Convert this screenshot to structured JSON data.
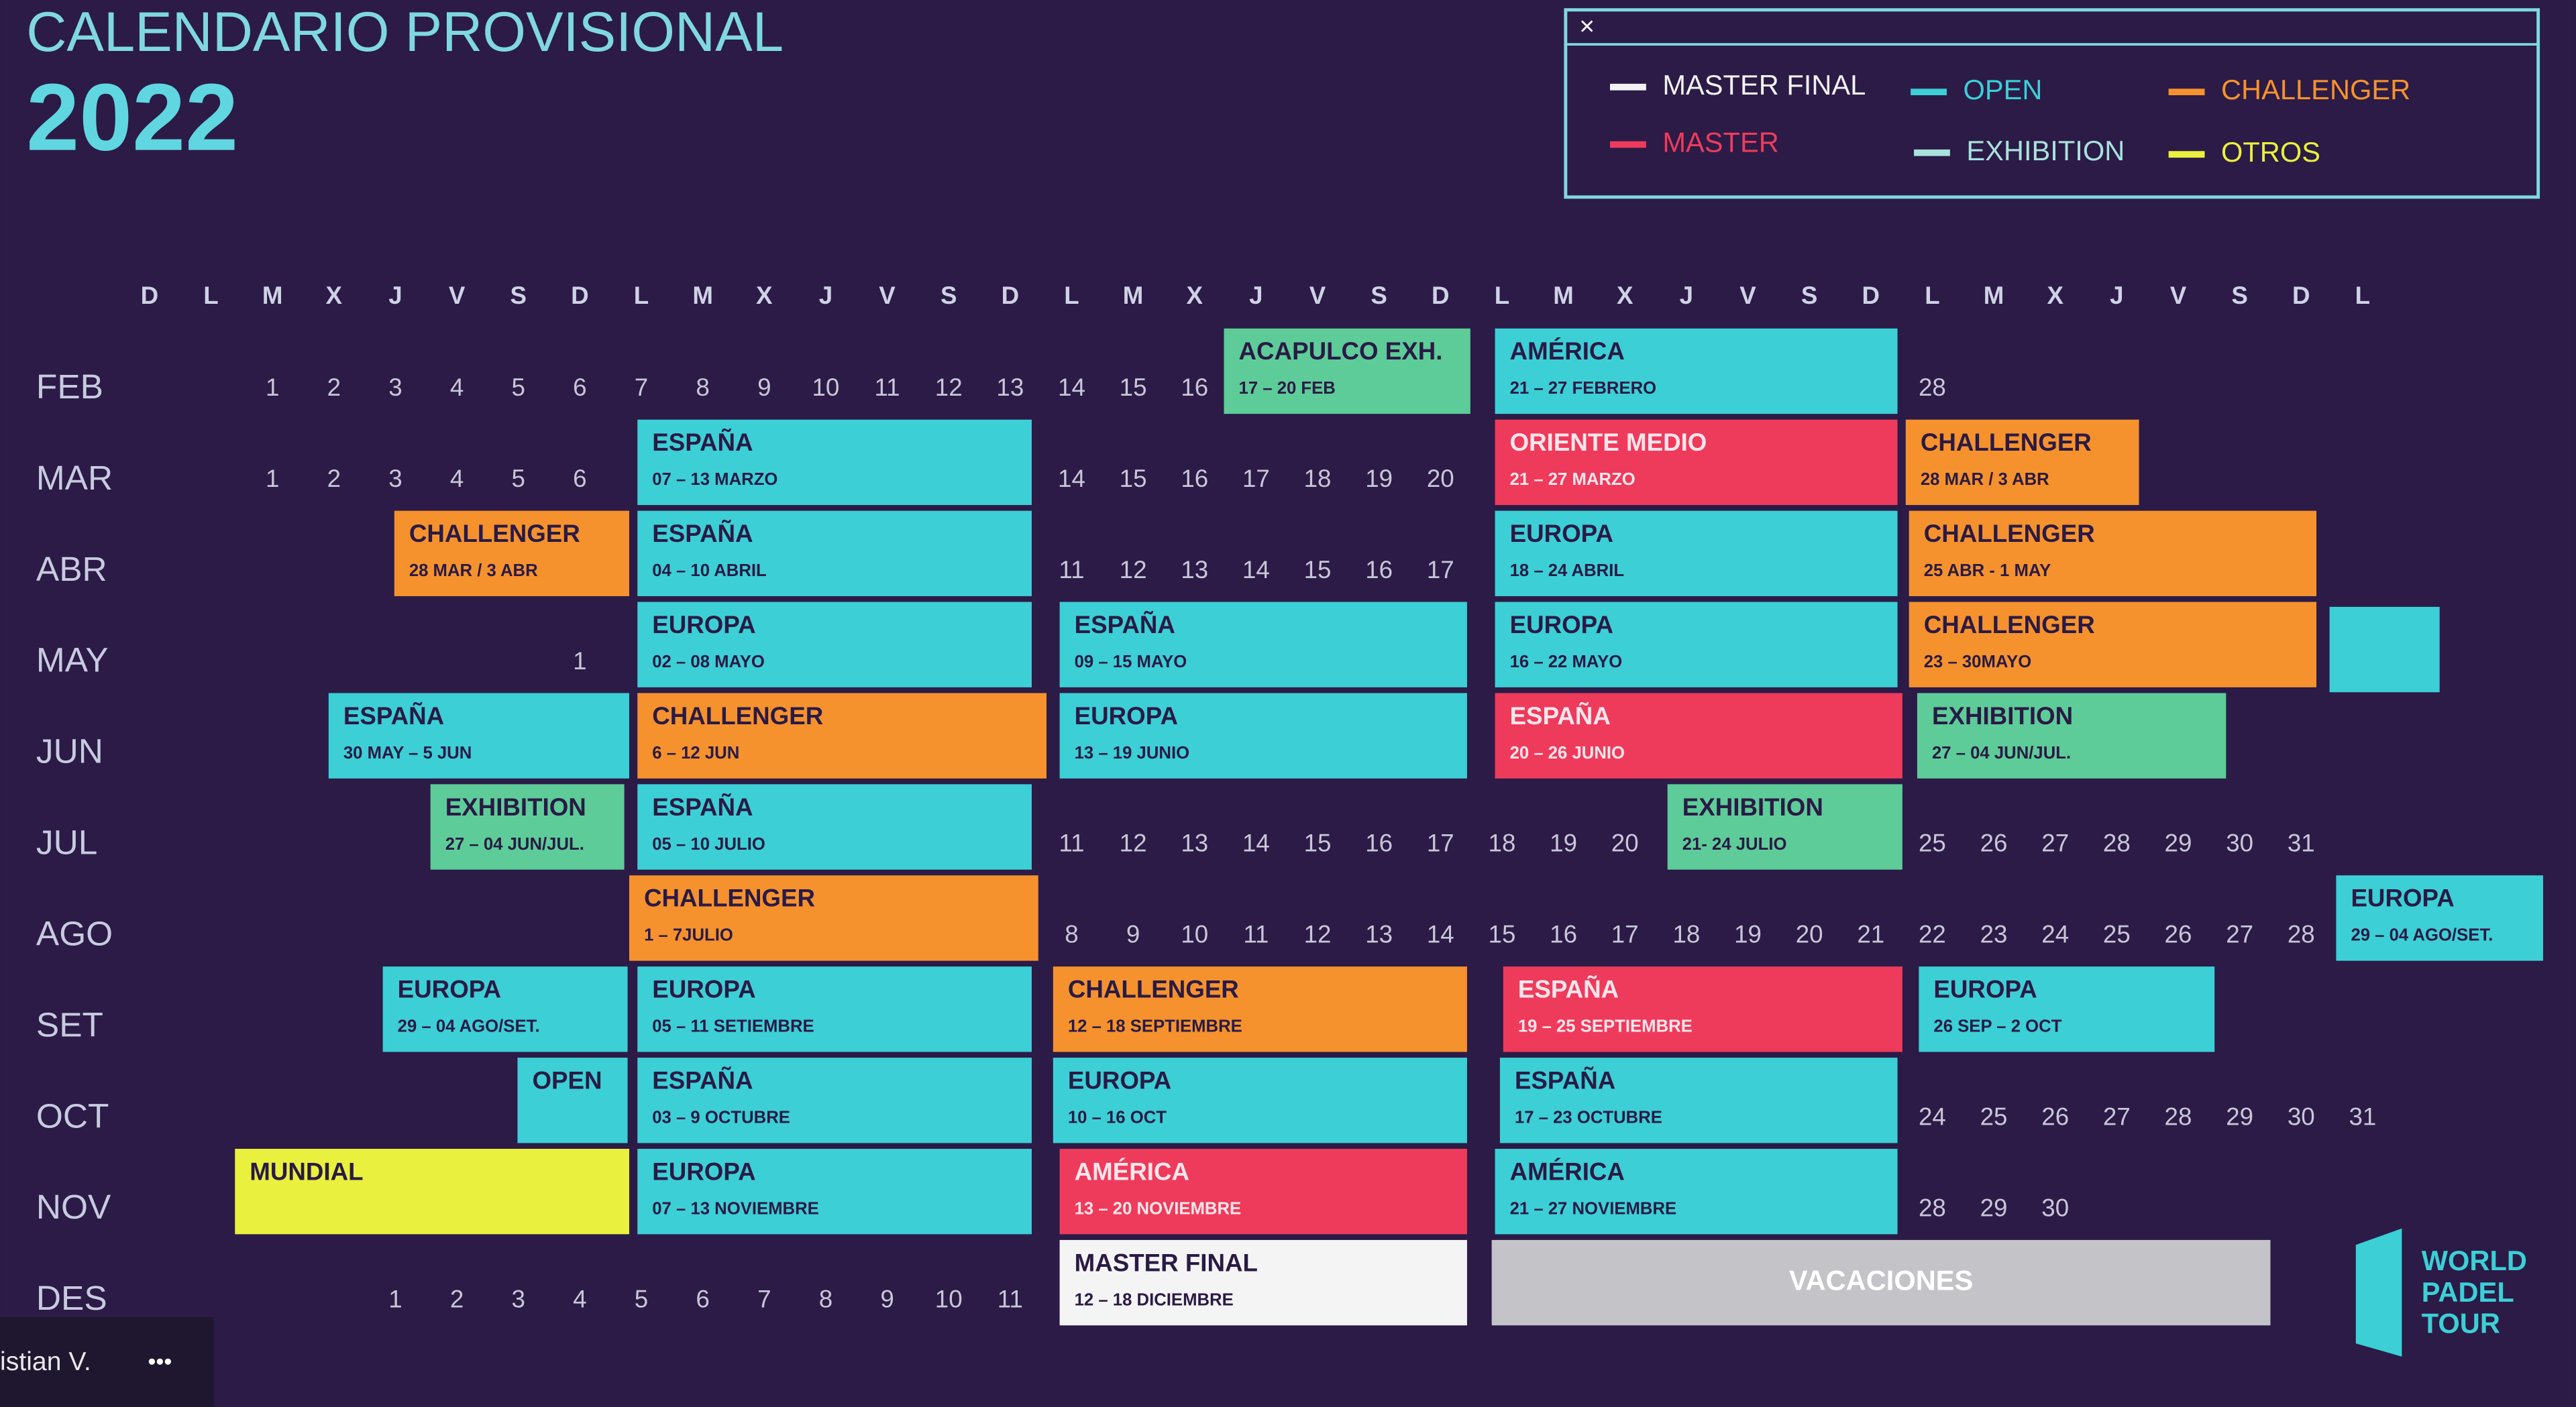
{
  "header": {
    "title": "CALENDARIO PROVISIONAL",
    "year": "2022"
  },
  "legend": {
    "close": "×",
    "items": [
      {
        "label": "MASTER FINAL",
        "color": "#f2f2f2"
      },
      {
        "label": "OPEN",
        "color": "#3ccfd6"
      },
      {
        "label": "CHALLENGER",
        "color": "#f5922e"
      },
      {
        "label": "MASTER",
        "color": "#ee3b5b"
      },
      {
        "label": "EXHIBITION",
        "color": "#a9e2dc"
      },
      {
        "label": "OTROS",
        "color": "#e9f03e"
      }
    ]
  },
  "weekdays": [
    "D",
    "L",
    "M",
    "X",
    "J",
    "V",
    "S",
    "D",
    "L",
    "M",
    "X",
    "J",
    "V",
    "S",
    "D",
    "L",
    "M",
    "X",
    "J",
    "V",
    "S",
    "D",
    "L",
    "M",
    "X",
    "J",
    "V",
    "S",
    "D",
    "L",
    "M",
    "X",
    "J",
    "V",
    "S",
    "D",
    "L"
  ],
  "months": [
    {
      "label": "FEB",
      "days": [
        null,
        null,
        1,
        2,
        3,
        4,
        5,
        6,
        7,
        8,
        9,
        10,
        11,
        12,
        13,
        14,
        15,
        16,
        null,
        null,
        null,
        null,
        null,
        null,
        null,
        null,
        null,
        null,
        null,
        28,
        null,
        null,
        null,
        null,
        null,
        null,
        null
      ],
      "events": [
        {
          "title": "ACAPULCO EXH.",
          "dates": "17 – 20 FEB",
          "color": "#5dcc98"
        },
        {
          "title": "AMÉRICA",
          "dates": "21 – 27 FEBRERO",
          "color": "#3ccfd6"
        }
      ]
    },
    {
      "label": "MAR",
      "days": [
        null,
        null,
        1,
        2,
        3,
        4,
        5,
        6,
        null,
        null,
        null,
        null,
        null,
        null,
        null,
        14,
        15,
        16,
        17,
        18,
        19,
        20,
        null,
        null,
        null,
        null,
        null,
        null,
        null,
        null,
        null,
        null,
        null,
        null,
        null,
        null,
        null
      ],
      "events": [
        {
          "title": "ESPAÑA",
          "dates": "07 – 13 MARZO",
          "color": "#3ccfd6"
        },
        {
          "title": "ORIENTE MEDIO",
          "dates": "21 – 27 MARZO",
          "color": "#ee3b5b",
          "text_color": "#ffe6ec"
        },
        {
          "title": "CHALLENGER",
          "dates": "28 MAR / 3 ABR",
          "color": "#f5922e"
        }
      ]
    },
    {
      "label": "ABR",
      "days": [
        null,
        null,
        null,
        null,
        null,
        null,
        null,
        null,
        null,
        null,
        null,
        null,
        null,
        null,
        null,
        11,
        12,
        13,
        14,
        15,
        16,
        17,
        null,
        null,
        null,
        null,
        null,
        null,
        null,
        null,
        null,
        null,
        null,
        null,
        null,
        null,
        null
      ],
      "events": [
        {
          "title": "CHALLENGER",
          "dates": "28 MAR / 3 ABR",
          "color": "#f5922e"
        },
        {
          "title": "ESPAÑA",
          "dates": "04 – 10 ABRIL",
          "color": "#3ccfd6"
        },
        {
          "title": "EUROPA",
          "dates": "18 – 24 ABRIL",
          "color": "#3ccfd6"
        },
        {
          "title": "CHALLENGER",
          "dates": "25 ABR - 1 MAY",
          "color": "#f5922e"
        }
      ]
    },
    {
      "label": "MAY",
      "days": [
        null,
        null,
        null,
        null,
        null,
        null,
        null,
        1,
        null,
        null,
        null,
        null,
        null,
        null,
        null,
        null,
        null,
        null,
        null,
        null,
        null,
        null,
        null,
        null,
        null,
        null,
        null,
        null,
        null,
        null,
        null,
        null,
        null,
        null,
        null,
        null,
        null
      ],
      "events": [
        {
          "title": "EUROPA",
          "dates": "02 – 08 MAYO",
          "color": "#3ccfd6"
        },
        {
          "title": "ESPAÑA",
          "dates": "09 – 15 MAYO",
          "color": "#3ccfd6"
        },
        {
          "title": "EUROPA",
          "dates": "16 – 22 MAYO",
          "color": "#3ccfd6"
        },
        {
          "title": "CHALLENGER",
          "dates": "23 – 30MAYO",
          "color": "#f5922e"
        }
      ]
    },
    {
      "label": "JUN",
      "events": [
        {
          "title": "ESPAÑA",
          "dates": "30 MAY – 5 JUN",
          "color": "#3ccfd6"
        },
        {
          "title": "CHALLENGER",
          "dates": "6 – 12 JUN",
          "color": "#f5922e"
        },
        {
          "title": "EUROPA",
          "dates": "13 – 19 JUNIO",
          "color": "#3ccfd6"
        },
        {
          "title": "ESPAÑA",
          "dates": "20 – 26 JUNIO",
          "color": "#ee3b5b",
          "text_color": "#ffe6ec"
        },
        {
          "title": "EXHIBITION",
          "dates": "27 – 04 JUN/JUL.",
          "color": "#5dcc98"
        }
      ]
    },
    {
      "label": "JUL",
      "days": [
        null,
        null,
        null,
        null,
        null,
        null,
        null,
        null,
        null,
        null,
        null,
        null,
        null,
        null,
        null,
        11,
        12,
        13,
        14,
        15,
        16,
        17,
        18,
        19,
        20,
        null,
        null,
        null,
        null,
        25,
        26,
        27,
        28,
        29,
        30,
        31,
        null
      ],
      "events": [
        {
          "title": "EXHIBITION",
          "dates": "27 – 04 JUN/JUL.",
          "color": "#5dcc98"
        },
        {
          "title": "ESPAÑA",
          "dates": "05 – 10 JULIO",
          "color": "#3ccfd6"
        },
        {
          "title": "EXHIBITION",
          "dates": "21- 24 JULIO",
          "color": "#5dcc98"
        }
      ]
    },
    {
      "label": "AGO",
      "days": [
        null,
        null,
        null,
        null,
        null,
        null,
        null,
        null,
        null,
        null,
        null,
        null,
        null,
        null,
        null,
        8,
        9,
        10,
        11,
        12,
        13,
        14,
        15,
        16,
        17,
        18,
        19,
        20,
        21,
        22,
        23,
        24,
        25,
        26,
        27,
        28,
        null
      ],
      "events": [
        {
          "title": "CHALLENGER",
          "dates": "1 – 7JULIO",
          "color": "#f5922e"
        },
        {
          "title": "EUROPA",
          "dates": "29 – 04 AGO/SET.",
          "color": "#3ccfd6"
        }
      ]
    },
    {
      "label": "SET",
      "events": [
        {
          "title": "EUROPA",
          "dates": "29 – 04 AGO/SET.",
          "color": "#3ccfd6"
        },
        {
          "title": "EUROPA",
          "dates": "05 – 11 SETIEMBRE",
          "color": "#3ccfd6"
        },
        {
          "title": "CHALLENGER",
          "dates": "12 – 18 SEPTIEMBRE",
          "color": "#f5922e"
        },
        {
          "title": "ESPAÑA",
          "dates": "19 – 25 SEPTIEMBRE",
          "color": "#ee3b5b",
          "text_color": "#ffe6ec"
        },
        {
          "title": "EUROPA",
          "dates": "26 SEP – 2 OCT",
          "color": "#3ccfd6"
        }
      ]
    },
    {
      "label": "OCT",
      "days": [
        null,
        null,
        null,
        null,
        null,
        null,
        null,
        null,
        null,
        null,
        null,
        null,
        null,
        null,
        null,
        null,
        null,
        null,
        null,
        null,
        null,
        null,
        null,
        null,
        null,
        null,
        null,
        null,
        null,
        24,
        25,
        26,
        27,
        28,
        29,
        30,
        31
      ],
      "events": [
        {
          "title": "OPEN",
          "color": "#3ccfd6"
        },
        {
          "title": "ESPAÑA",
          "dates": "03 – 9 OCTUBRE",
          "color": "#3ccfd6"
        },
        {
          "title": "EUROPA",
          "dates": "10 – 16 OCT",
          "color": "#3ccfd6"
        },
        {
          "title": "ESPAÑA",
          "dates": "17 – 23 OCTUBRE",
          "color": "#3ccfd6"
        }
      ]
    },
    {
      "label": "NOV",
      "days": [
        null,
        null,
        null,
        null,
        null,
        null,
        null,
        null,
        null,
        null,
        null,
        null,
        null,
        null,
        null,
        null,
        null,
        null,
        null,
        null,
        null,
        null,
        null,
        null,
        null,
        null,
        null,
        null,
        null,
        28,
        29,
        30,
        null,
        null,
        null,
        null,
        null
      ],
      "events": [
        {
          "title": "MUNDIAL",
          "color": "#e9f03e"
        },
        {
          "title": "EUROPA",
          "dates": "07 – 13 NOVIEMBRE",
          "color": "#3ccfd6"
        },
        {
          "title": "AMÉRICA",
          "dates": "13 – 20 NOVIEMBRE",
          "color": "#ee3b5b",
          "text_color": "#ffe6ec"
        },
        {
          "title": "AMÉRICA",
          "dates": "21 – 27 NOVIEMBRE",
          "color": "#3ccfd6"
        }
      ]
    },
    {
      "label": "DES",
      "days": [
        null,
        null,
        null,
        null,
        1,
        2,
        3,
        4,
        5,
        6,
        7,
        8,
        9,
        10,
        11,
        null,
        null,
        null,
        null,
        null,
        null,
        null,
        null,
        null,
        null,
        null,
        null,
        null,
        null,
        null,
        null,
        null,
        null,
        null,
        null,
        null,
        null
      ],
      "events": [
        {
          "title": "MASTER FINAL",
          "dates": "12 – 18 DICIEMBRE",
          "color": "#f4f4f4"
        },
        {
          "title": "VACACIONES",
          "color": "#c4c4c8",
          "text_color": "#ffffff"
        }
      ]
    }
  ],
  "logo": {
    "lines": [
      "WORLD",
      "PADEL",
      "TOUR"
    ]
  },
  "participant": {
    "name": "istian V.",
    "menu": "•••"
  }
}
